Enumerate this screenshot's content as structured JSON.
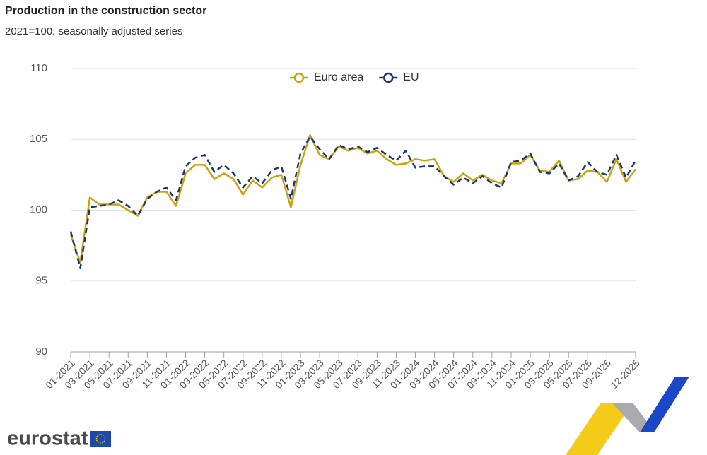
{
  "chart_data": {
    "type": "line",
    "title": "Production in the construction sector",
    "subtitle": "2021=100, seasonally adjusted series",
    "categories": [
      "01-2021",
      null,
      "03-2021",
      null,
      "05-2021",
      null,
      "07-2021",
      null,
      "09-2021",
      null,
      "11-2021",
      null,
      "01-2022",
      null,
      "03-2022",
      null,
      "05-2022",
      null,
      "07-2022",
      null,
      "09-2022",
      null,
      "11-2022",
      null,
      "01-2023",
      null,
      "03-2023",
      null,
      "05-2023",
      null,
      "07-2023",
      null,
      "09-2023",
      null,
      "11-2023",
      null,
      "01-2024",
      null,
      "03-2024",
      null,
      "05-2024",
      null,
      "07-2024",
      null,
      "09-2024",
      null,
      "11-2024",
      null,
      "01-2025",
      null,
      "03-2025",
      null,
      "05-2025",
      null,
      "07-2025",
      null,
      "09-2025",
      null,
      null,
      "12-2025"
    ],
    "series": [
      {
        "name": "Euro area",
        "color": "#c9a20c",
        "dash": false,
        "values": [
          98.3,
          96.3,
          100.9,
          100.4,
          100.4,
          100.4,
          100.0,
          99.6,
          100.9,
          101.3,
          101.3,
          100.3,
          102.6,
          103.2,
          103.2,
          102.2,
          102.6,
          102.2,
          101.1,
          102.1,
          101.6,
          102.3,
          102.5,
          100.2,
          103.2,
          105.3,
          103.9,
          103.6,
          104.5,
          104.2,
          104.4,
          104.0,
          104.2,
          103.6,
          103.2,
          103.3,
          103.6,
          103.5,
          103.6,
          102.4,
          102.0,
          102.6,
          102.1,
          102.5,
          102.1,
          101.9,
          103.3,
          103.3,
          103.9,
          102.8,
          102.7,
          103.5,
          102.1,
          102.2,
          102.8,
          102.7,
          102.0,
          103.6,
          102.0,
          102.9
        ]
      },
      {
        "name": "EU",
        "color": "#1b3474",
        "dash": true,
        "values": [
          98.5,
          95.9,
          100.2,
          100.3,
          100.4,
          100.7,
          100.3,
          99.6,
          100.8,
          101.3,
          101.6,
          100.7,
          103.1,
          103.7,
          103.9,
          102.7,
          103.2,
          102.6,
          101.6,
          102.4,
          101.9,
          102.8,
          103.1,
          100.8,
          104.0,
          105.2,
          104.3,
          103.6,
          104.6,
          104.3,
          104.5,
          104.1,
          104.4,
          103.9,
          103.5,
          104.2,
          103.0,
          103.1,
          103.1,
          102.4,
          101.8,
          102.3,
          101.9,
          102.4,
          101.9,
          101.6,
          103.4,
          103.5,
          104.0,
          102.7,
          102.6,
          103.3,
          102.1,
          102.4,
          103.4,
          102.7,
          102.5,
          103.9,
          102.3,
          103.5
        ]
      }
    ],
    "ylim": [
      90,
      110
    ],
    "yticks": [
      90,
      95,
      100,
      105,
      110
    ],
    "grid": true,
    "legend": "top",
    "logo": "eurostat"
  }
}
